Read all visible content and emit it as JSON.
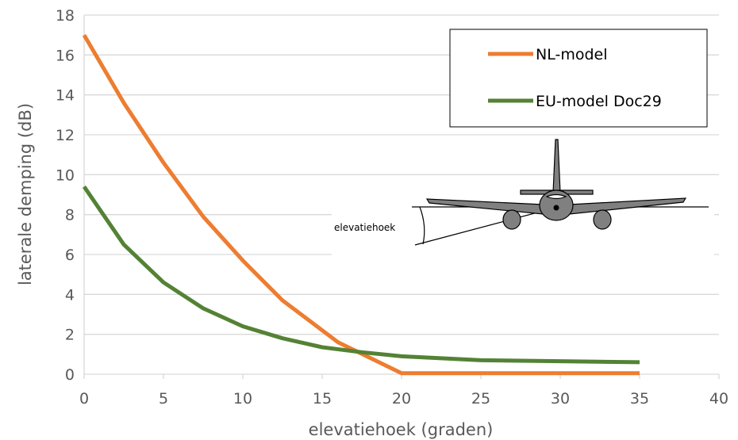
{
  "chart_data": {
    "type": "line",
    "xlabel": "elevatiehoek (graden)",
    "ylabel": "laterale demping (dB)",
    "xlim": [
      0,
      40
    ],
    "ylim": [
      0,
      18
    ],
    "xticks": [
      0,
      5,
      10,
      15,
      20,
      25,
      30,
      35,
      40
    ],
    "yticks": [
      0,
      2,
      4,
      6,
      8,
      10,
      12,
      14,
      16,
      18
    ],
    "grid": "horizontal",
    "legend_position": "top-right",
    "series": [
      {
        "name": "NL-model",
        "color": "#ED7D31",
        "x": [
          0,
          2.5,
          5,
          7.5,
          10,
          12.5,
          16,
          20,
          25,
          30,
          35
        ],
        "y": [
          17.0,
          13.6,
          10.6,
          7.9,
          5.7,
          3.7,
          1.6,
          0.05,
          0.05,
          0.05,
          0.05
        ]
      },
      {
        "name": "EU-model Doc29",
        "color": "#548235",
        "x": [
          0,
          2.5,
          5,
          7.5,
          10,
          12.5,
          15,
          17.5,
          20,
          25,
          30,
          35
        ],
        "y": [
          9.4,
          6.5,
          4.6,
          3.3,
          2.4,
          1.8,
          1.35,
          1.1,
          0.9,
          0.7,
          0.65,
          0.6
        ]
      }
    ],
    "annotation": {
      "label": "elevatiehoek",
      "icon": "airplane-front-view-icon"
    }
  }
}
